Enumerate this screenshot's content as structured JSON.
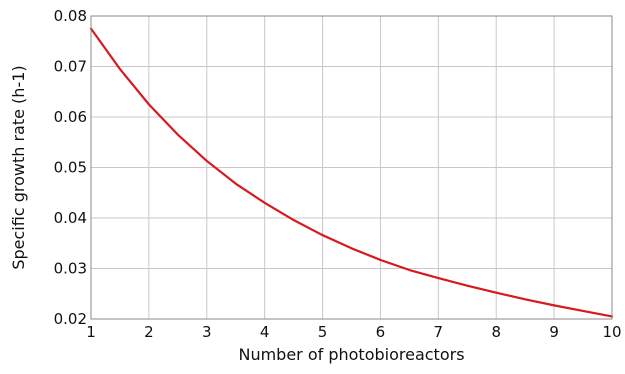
{
  "chart_data": {
    "type": "line",
    "title": "",
    "xlabel": "Number of photobioreactors",
    "ylabel": "Specific growth rate (h-1)",
    "xlim": [
      1,
      10
    ],
    "ylim": [
      0.02,
      0.08
    ],
    "xticks": [
      1,
      2,
      3,
      4,
      5,
      6,
      7,
      8,
      9,
      10
    ],
    "yticks": [
      0.02,
      0.03,
      0.04,
      0.05,
      0.06,
      0.07,
      0.08
    ],
    "ytick_labels": [
      "0.02",
      "0.03",
      "0.04",
      "0.05",
      "0.06",
      "0.07",
      "0.08"
    ],
    "grid": true,
    "legend": "none",
    "series": [
      {
        "color": "#d71920",
        "x": [
          1,
          1.5,
          2,
          2.5,
          3,
          3.5,
          4,
          4.5,
          5,
          5.5,
          6,
          6.5,
          7,
          7.5,
          8,
          8.5,
          9,
          9.5,
          10
        ],
        "y": [
          0.0775,
          0.0695,
          0.0625,
          0.0565,
          0.0513,
          0.0468,
          0.043,
          0.0396,
          0.0366,
          0.034,
          0.0317,
          0.0297,
          0.0281,
          0.0266,
          0.0252,
          0.0239,
          0.0227,
          0.0216,
          0.0205
        ]
      }
    ]
  }
}
